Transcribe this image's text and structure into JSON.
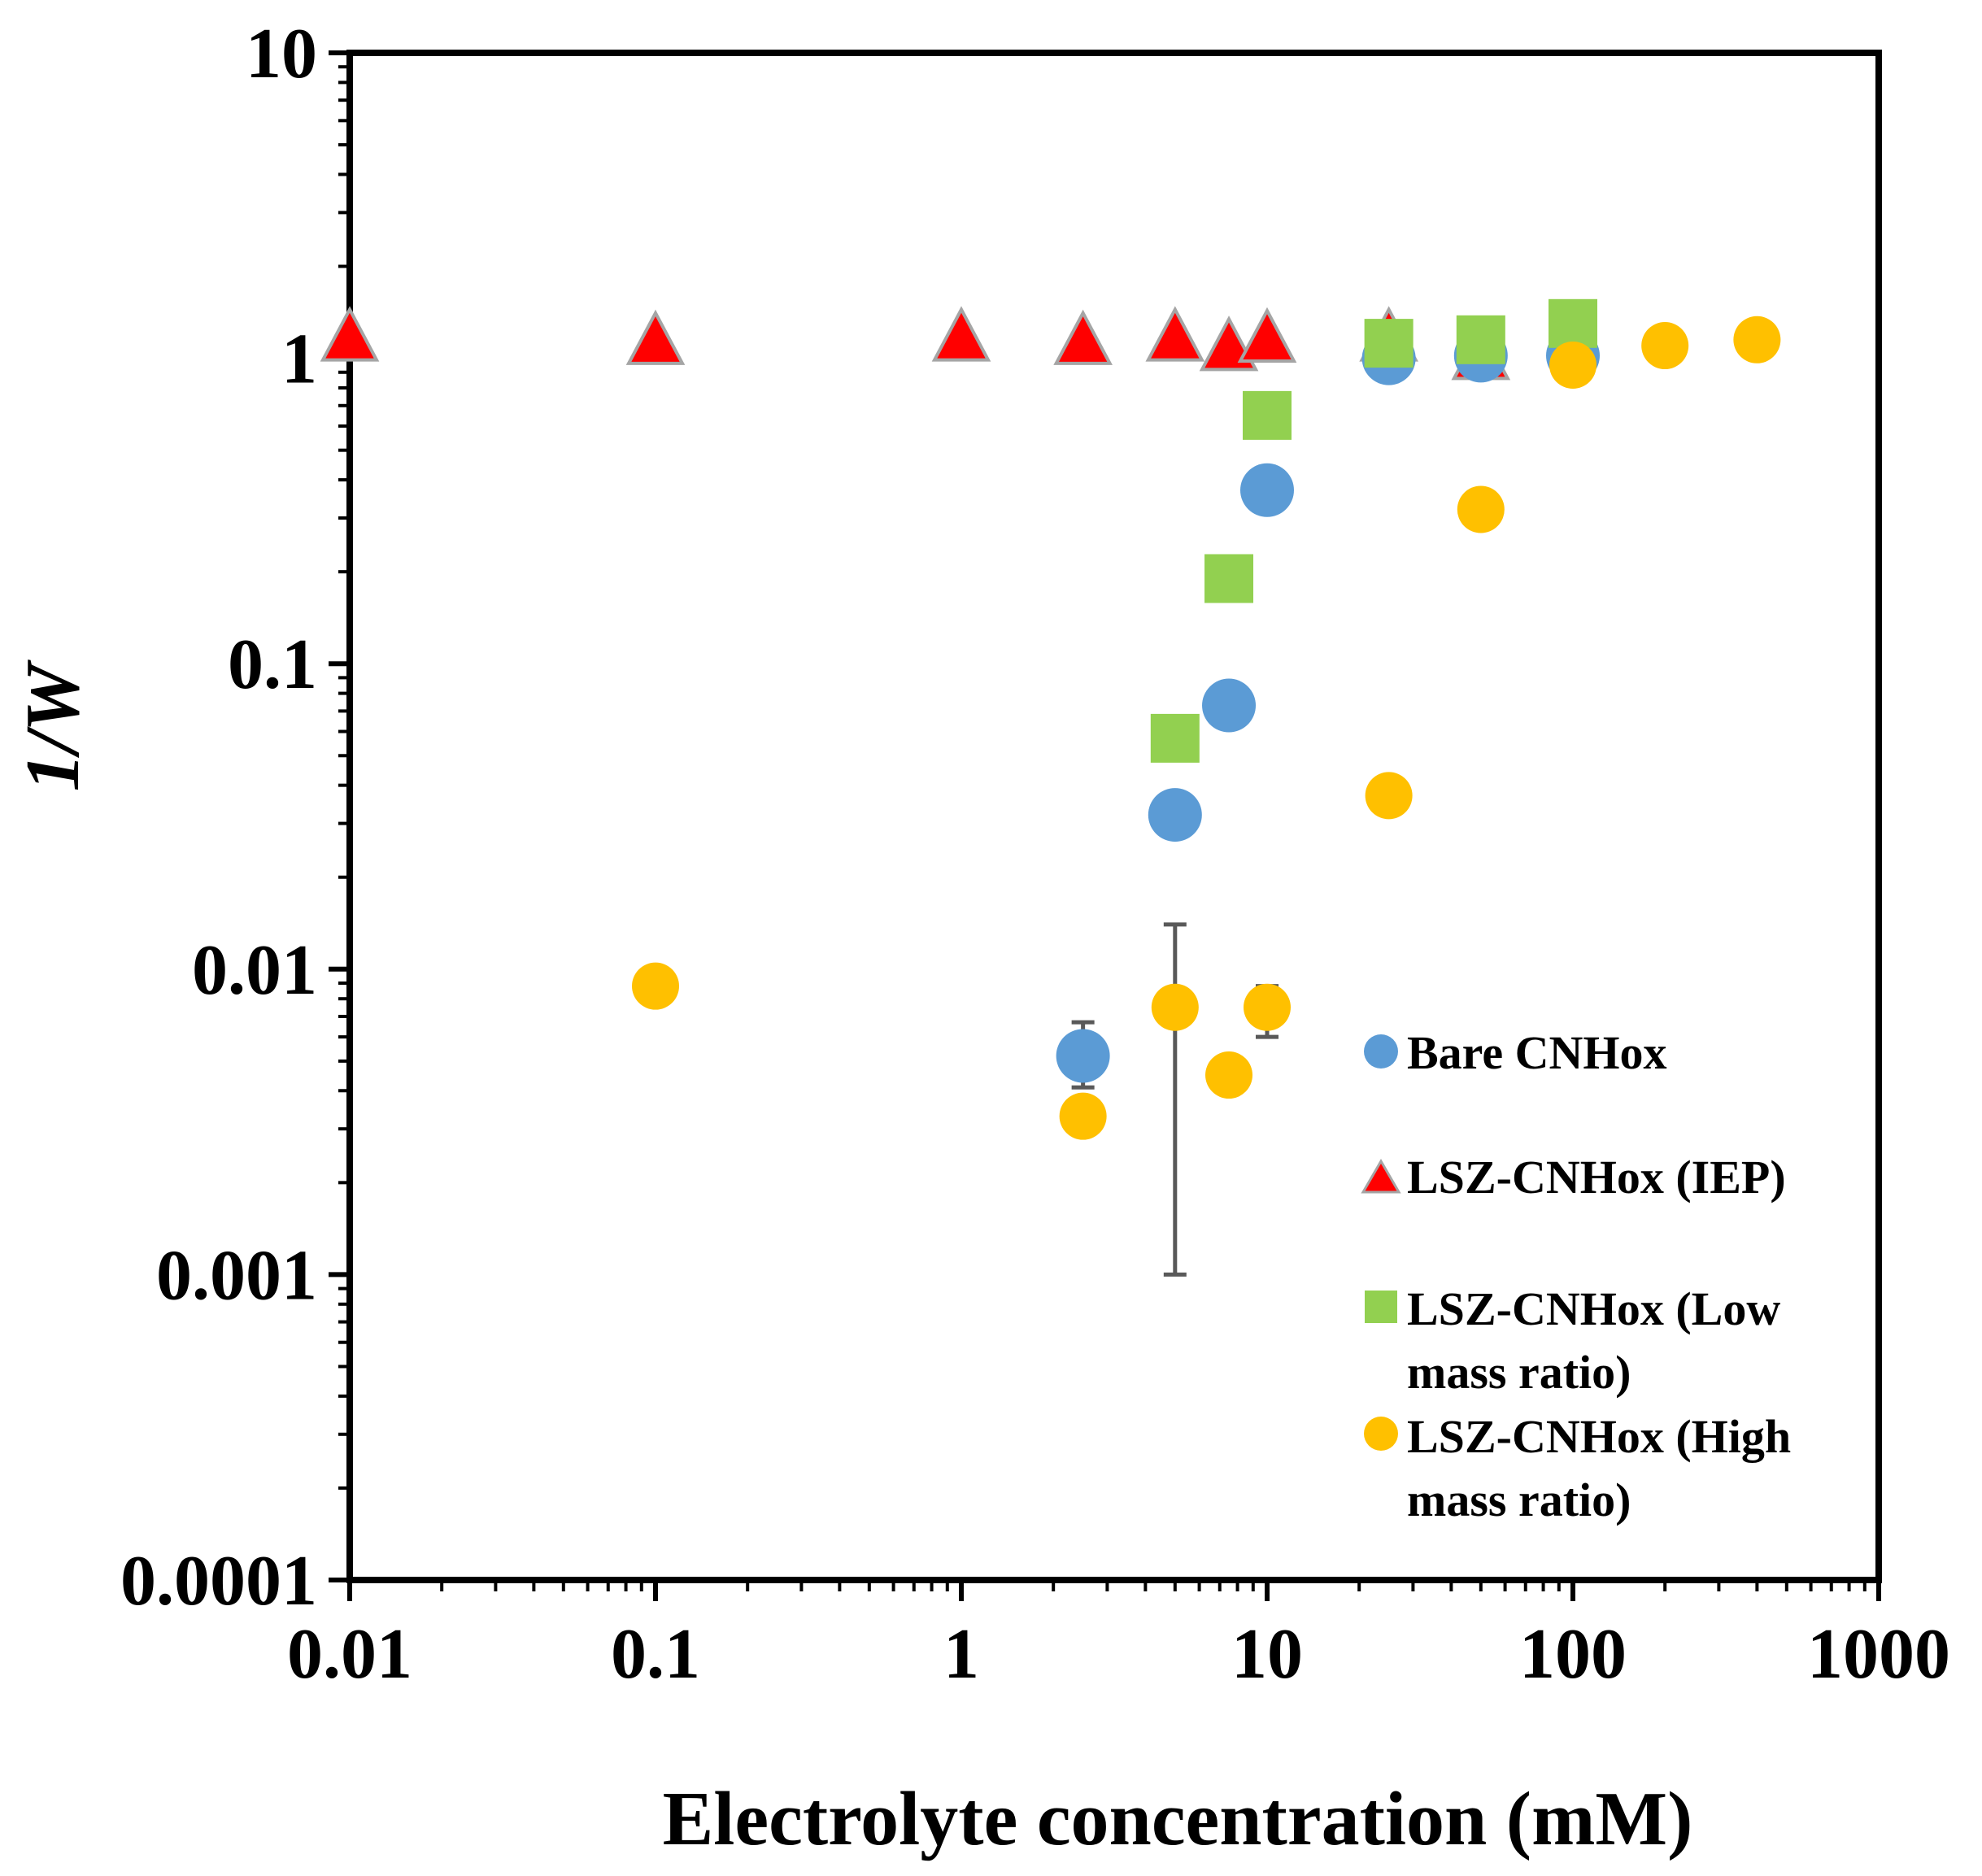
{
  "chart_data": {
    "type": "scatter",
    "title": "",
    "xlabel": "Electrolyte concentration (mM)",
    "ylabel": "1/W",
    "x_scale": "log",
    "y_scale": "log",
    "xlim": [
      0.01,
      1000
    ],
    "ylim": [
      0.0001,
      10
    ],
    "x_tick_labels": [
      "0.01",
      "0.1",
      "1",
      "10",
      "100",
      "1000"
    ],
    "y_tick_labels": [
      "0.0001",
      "0.001",
      "0.01",
      "0.1",
      "1",
      "10"
    ],
    "grid": false,
    "legend_position": "right, inside plot area",
    "legend": {
      "bare": "Bare CNHox",
      "iep": "LSZ-CNHox (IEP)",
      "low_line1": "LSZ-CNHox (Low",
      "low_line2": "mass ratio)",
      "high_line1": "LSZ-CNHox (High",
      "high_line2": "mass ratio)"
    },
    "series": [
      {
        "name": "Bare CNHox",
        "marker": "circle",
        "color": "#5b9bd5",
        "points": [
          {
            "x": 2.5,
            "y": 0.0052,
            "err_low": 0.0041,
            "err_high": 0.0067
          },
          {
            "x": 5,
            "y": 0.032
          },
          {
            "x": 7.5,
            "y": 0.073
          },
          {
            "x": 10,
            "y": 0.37
          },
          {
            "x": 25,
            "y": 1.0
          },
          {
            "x": 50,
            "y": 1.02
          },
          {
            "x": 100,
            "y": 1.02
          }
        ]
      },
      {
        "name": "LSZ-CNHox (IEP)",
        "marker": "triangle",
        "color": "#ff0000",
        "points": [
          {
            "x": 0.01,
            "y": 1.15
          },
          {
            "x": 0.1,
            "y": 1.12
          },
          {
            "x": 1,
            "y": 1.15
          },
          {
            "x": 2.5,
            "y": 1.12
          },
          {
            "x": 5,
            "y": 1.15
          },
          {
            "x": 7.5,
            "y": 1.07
          },
          {
            "x": 10,
            "y": 1.14
          },
          {
            "x": 25,
            "y": 1.15
          },
          {
            "x": 50,
            "y": 1.0
          }
        ]
      },
      {
        "name": "LSZ-CNHox (Low mass ratio)",
        "marker": "square",
        "color": "#92d050",
        "points": [
          {
            "x": 5,
            "y": 0.057
          },
          {
            "x": 7.5,
            "y": 0.19
          },
          {
            "x": 10,
            "y": 0.65
          },
          {
            "x": 25,
            "y": 1.12
          },
          {
            "x": 50,
            "y": 1.15
          },
          {
            "x": 100,
            "y": 1.3
          }
        ]
      },
      {
        "name": "LSZ-CNHox (High mass ratio)",
        "marker": "circle",
        "color": "#ffc000",
        "points": [
          {
            "x": 0.1,
            "y": 0.0088
          },
          {
            "x": 2.5,
            "y": 0.0033
          },
          {
            "x": 5,
            "y": 0.0075,
            "err_low": 0.001,
            "err_high": 0.014
          },
          {
            "x": 7.5,
            "y": 0.0045
          },
          {
            "x": 10,
            "y": 0.0075,
            "err_low": 0.006,
            "err_high": 0.0088
          },
          {
            "x": 25,
            "y": 0.037
          },
          {
            "x": 50,
            "y": 0.32
          },
          {
            "x": 100,
            "y": 0.95
          },
          {
            "x": 200,
            "y": 1.1
          },
          {
            "x": 400,
            "y": 1.15
          }
        ]
      }
    ]
  }
}
